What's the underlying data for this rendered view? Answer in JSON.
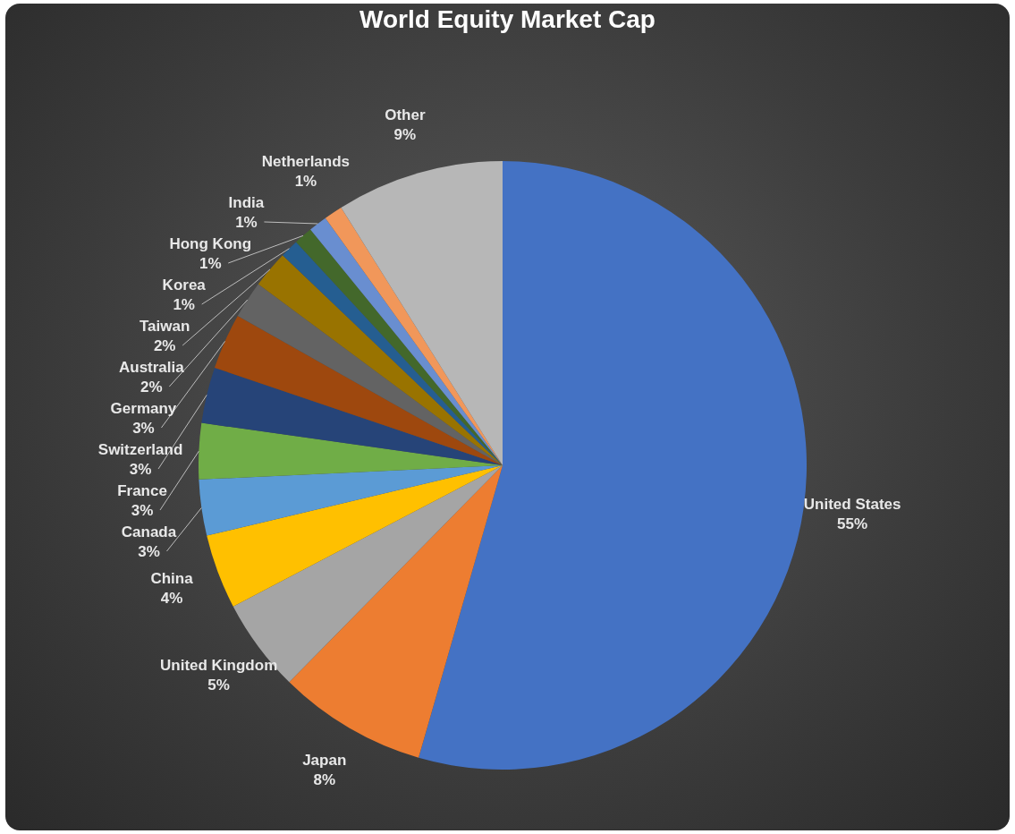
{
  "chart_data": {
    "type": "pie",
    "title": "World Equity Market Cap",
    "categories": [
      "United States",
      "Japan",
      "United Kingdom",
      "China",
      "Canada",
      "France",
      "Switzerland",
      "Germany",
      "Australia",
      "Taiwan",
      "Korea",
      "Hong Kong",
      "India",
      "Netherlands",
      "Other"
    ],
    "values": [
      55,
      8,
      5,
      4,
      3,
      3,
      3,
      3,
      2,
      2,
      1,
      1,
      1,
      1,
      9
    ],
    "colors": [
      "#4472c4",
      "#ed7d31",
      "#a5a5a5",
      "#ffc000",
      "#5b9bd5",
      "#70ad47",
      "#264478",
      "#9e480e",
      "#636363",
      "#997300",
      "#255e91",
      "#43682b",
      "#698ed0",
      "#f1975a",
      "#b7b7b7"
    ],
    "value_labels": [
      "55%",
      "8%",
      "5%",
      "4%",
      "3%",
      "3%",
      "3%",
      "3%",
      "2%",
      "2%",
      "1%",
      "1%",
      "1%",
      "1%",
      "9%"
    ],
    "legend": false
  }
}
